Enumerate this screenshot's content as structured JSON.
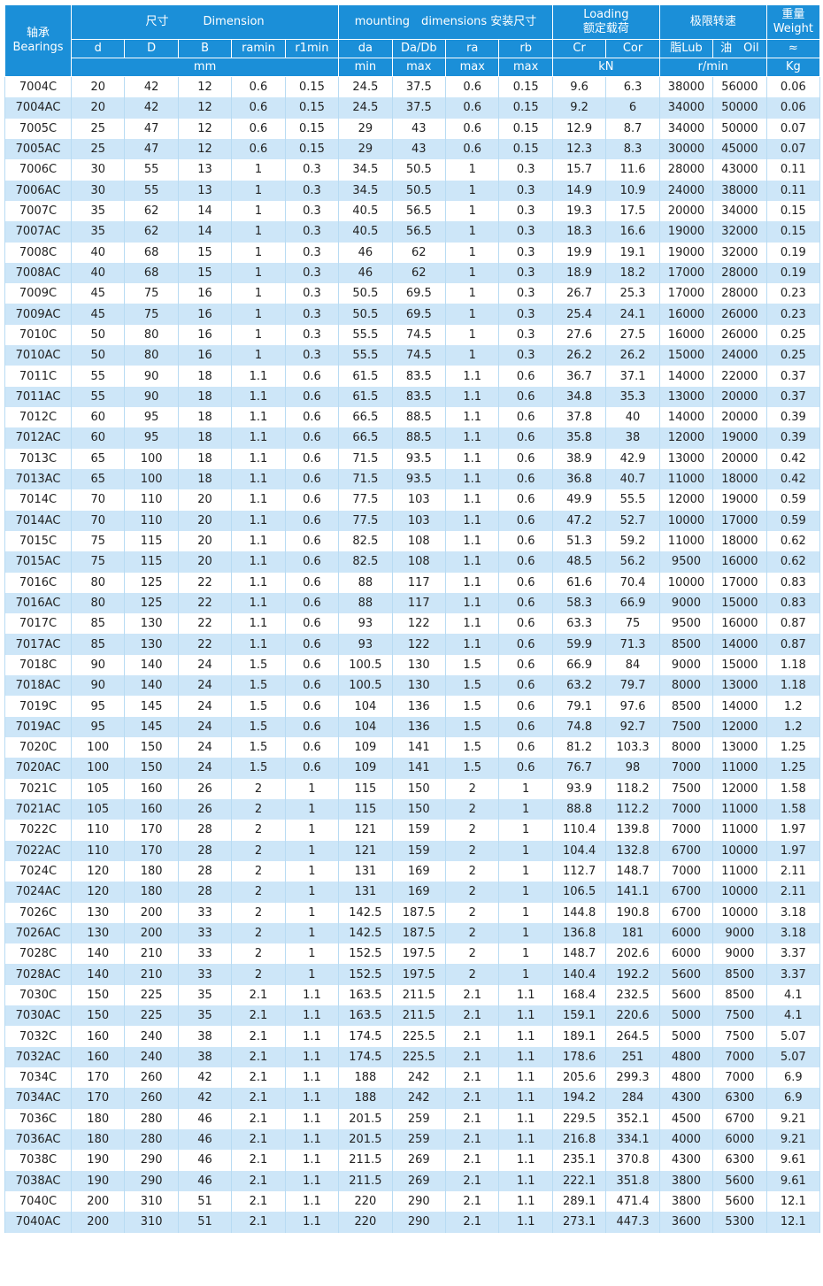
{
  "header": {
    "bearings_cn": "轴承",
    "bearings_en": "Bearings",
    "dimension_cn": "尺寸",
    "dimension_en": "Dimension",
    "mounting": "mounting　dimensions 安装尺寸",
    "loading_en": "Loading",
    "loading_cn": "额定载荷",
    "speed": "极限转速",
    "weight_cn": "重量",
    "weight_en": "Weight",
    "columns": [
      "d",
      "D",
      "B",
      "ramin",
      "r1min",
      "da",
      "Da/Db",
      "ra",
      "rb",
      "Cr",
      "Cor",
      "脂Lub",
      "油　Oil",
      "≈"
    ],
    "units": [
      "mm",
      "min",
      "max",
      "max",
      "max",
      "kN",
      "r/min",
      "Kg"
    ]
  },
  "table": {
    "rows": [
      [
        "7004C",
        20,
        42,
        12,
        0.6,
        0.15,
        24.5,
        37.5,
        0.6,
        0.15,
        9.6,
        6.3,
        38000,
        56000,
        0.06
      ],
      [
        "7004AC",
        20,
        42,
        12,
        0.6,
        0.15,
        24.5,
        37.5,
        0.6,
        0.15,
        9.2,
        6,
        34000,
        50000,
        0.06
      ],
      [
        "7005C",
        25,
        47,
        12,
        0.6,
        0.15,
        29,
        43,
        0.6,
        0.15,
        12.9,
        8.7,
        34000,
        50000,
        0.07
      ],
      [
        "7005AC",
        25,
        47,
        12,
        0.6,
        0.15,
        29,
        43,
        0.6,
        0.15,
        12.3,
        8.3,
        30000,
        45000,
        0.07
      ],
      [
        "7006C",
        30,
        55,
        13,
        1,
        0.3,
        34.5,
        50.5,
        1,
        0.3,
        15.7,
        11.6,
        28000,
        43000,
        0.11
      ],
      [
        "7006AC",
        30,
        55,
        13,
        1,
        0.3,
        34.5,
        50.5,
        1,
        0.3,
        14.9,
        10.9,
        24000,
        38000,
        0.11
      ],
      [
        "7007C",
        35,
        62,
        14,
        1,
        0.3,
        40.5,
        56.5,
        1,
        0.3,
        19.3,
        17.5,
        20000,
        34000,
        0.15
      ],
      [
        "7007AC",
        35,
        62,
        14,
        1,
        0.3,
        40.5,
        56.5,
        1,
        0.3,
        18.3,
        16.6,
        19000,
        32000,
        0.15
      ],
      [
        "7008C",
        40,
        68,
        15,
        1,
        0.3,
        46,
        62,
        1,
        0.3,
        19.9,
        19.1,
        19000,
        32000,
        0.19
      ],
      [
        "7008AC",
        40,
        68,
        15,
        1,
        0.3,
        46,
        62,
        1,
        0.3,
        18.9,
        18.2,
        17000,
        28000,
        0.19
      ],
      [
        "7009C",
        45,
        75,
        16,
        1,
        0.3,
        50.5,
        69.5,
        1,
        0.3,
        26.7,
        25.3,
        17000,
        28000,
        0.23
      ],
      [
        "7009AC",
        45,
        75,
        16,
        1,
        0.3,
        50.5,
        69.5,
        1,
        0.3,
        25.4,
        24.1,
        16000,
        26000,
        0.23
      ],
      [
        "7010C",
        50,
        80,
        16,
        1,
        0.3,
        55.5,
        74.5,
        1,
        0.3,
        27.6,
        27.5,
        16000,
        26000,
        0.25
      ],
      [
        "7010AC",
        50,
        80,
        16,
        1,
        0.3,
        55.5,
        74.5,
        1,
        0.3,
        26.2,
        26.2,
        15000,
        24000,
        0.25
      ],
      [
        "7011C",
        55,
        90,
        18,
        1.1,
        0.6,
        61.5,
        83.5,
        1.1,
        0.6,
        36.7,
        37.1,
        14000,
        22000,
        0.37
      ],
      [
        "7011AC",
        55,
        90,
        18,
        1.1,
        0.6,
        61.5,
        83.5,
        1.1,
        0.6,
        34.8,
        35.3,
        13000,
        20000,
        0.37
      ],
      [
        "7012C",
        60,
        95,
        18,
        1.1,
        0.6,
        66.5,
        88.5,
        1.1,
        0.6,
        37.8,
        40,
        14000,
        20000,
        0.39
      ],
      [
        "7012AC",
        60,
        95,
        18,
        1.1,
        0.6,
        66.5,
        88.5,
        1.1,
        0.6,
        35.8,
        38,
        12000,
        19000,
        0.39
      ],
      [
        "7013C",
        65,
        100,
        18,
        1.1,
        0.6,
        71.5,
        93.5,
        1.1,
        0.6,
        38.9,
        42.9,
        13000,
        20000,
        0.42
      ],
      [
        "7013AC",
        65,
        100,
        18,
        1.1,
        0.6,
        71.5,
        93.5,
        1.1,
        0.6,
        36.8,
        40.7,
        11000,
        18000,
        0.42
      ],
      [
        "7014C",
        70,
        110,
        20,
        1.1,
        0.6,
        77.5,
        103,
        1.1,
        0.6,
        49.9,
        55.5,
        12000,
        19000,
        0.59
      ],
      [
        "7014AC",
        70,
        110,
        20,
        1.1,
        0.6,
        77.5,
        103,
        1.1,
        0.6,
        47.2,
        52.7,
        10000,
        17000,
        0.59
      ],
      [
        "7015C",
        75,
        115,
        20,
        1.1,
        0.6,
        82.5,
        108,
        1.1,
        0.6,
        51.3,
        59.2,
        11000,
        18000,
        0.62
      ],
      [
        "7015AC",
        75,
        115,
        20,
        1.1,
        0.6,
        82.5,
        108,
        1.1,
        0.6,
        48.5,
        56.2,
        9500,
        16000,
        0.62
      ],
      [
        "7016C",
        80,
        125,
        22,
        1.1,
        0.6,
        88,
        117,
        1.1,
        0.6,
        61.6,
        70.4,
        10000,
        17000,
        0.83
      ],
      [
        "7016AC",
        80,
        125,
        22,
        1.1,
        0.6,
        88,
        117,
        1.1,
        0.6,
        58.3,
        66.9,
        9000,
        15000,
        0.83
      ],
      [
        "7017C",
        85,
        130,
        22,
        1.1,
        0.6,
        93,
        122,
        1.1,
        0.6,
        63.3,
        75,
        9500,
        16000,
        0.87
      ],
      [
        "7017AC",
        85,
        130,
        22,
        1.1,
        0.6,
        93,
        122,
        1.1,
        0.6,
        59.9,
        71.3,
        8500,
        14000,
        0.87
      ],
      [
        "7018C",
        90,
        140,
        24,
        1.5,
        0.6,
        100.5,
        130,
        1.5,
        0.6,
        66.9,
        84,
        9000,
        15000,
        1.18
      ],
      [
        "7018AC",
        90,
        140,
        24,
        1.5,
        0.6,
        100.5,
        130,
        1.5,
        0.6,
        63.2,
        79.7,
        8000,
        13000,
        1.18
      ],
      [
        "7019C",
        95,
        145,
        24,
        1.5,
        0.6,
        104,
        136,
        1.5,
        0.6,
        79.1,
        97.6,
        8500,
        14000,
        1.2
      ],
      [
        "7019AC",
        95,
        145,
        24,
        1.5,
        0.6,
        104,
        136,
        1.5,
        0.6,
        74.8,
        92.7,
        7500,
        12000,
        1.2
      ],
      [
        "7020C",
        100,
        150,
        24,
        1.5,
        0.6,
        109,
        141,
        1.5,
        0.6,
        81.2,
        103.3,
        8000,
        13000,
        1.25
      ],
      [
        "7020AC",
        100,
        150,
        24,
        1.5,
        0.6,
        109,
        141,
        1.5,
        0.6,
        76.7,
        98,
        7000,
        11000,
        1.25
      ],
      [
        "7021C",
        105,
        160,
        26,
        2,
        1,
        115,
        150,
        2,
        1,
        93.9,
        118.2,
        7500,
        12000,
        1.58
      ],
      [
        "7021AC",
        105,
        160,
        26,
        2,
        1,
        115,
        150,
        2,
        1,
        88.8,
        112.2,
        7000,
        11000,
        1.58
      ],
      [
        "7022C",
        110,
        170,
        28,
        2,
        1,
        121,
        159,
        2,
        1,
        110.4,
        139.8,
        7000,
        11000,
        1.97
      ],
      [
        "7022AC",
        110,
        170,
        28,
        2,
        1,
        121,
        159,
        2,
        1,
        104.4,
        132.8,
        6700,
        10000,
        1.97
      ],
      [
        "7024C",
        120,
        180,
        28,
        2,
        1,
        131,
        169,
        2,
        1,
        112.7,
        148.7,
        7000,
        11000,
        2.11
      ],
      [
        "7024AC",
        120,
        180,
        28,
        2,
        1,
        131,
        169,
        2,
        1,
        106.5,
        141.1,
        6700,
        10000,
        2.11
      ],
      [
        "7026C",
        130,
        200,
        33,
        2,
        1,
        142.5,
        187.5,
        2,
        1,
        144.8,
        190.8,
        6700,
        10000,
        3.18
      ],
      [
        "7026AC",
        130,
        200,
        33,
        2,
        1,
        142.5,
        187.5,
        2,
        1,
        136.8,
        181,
        6000,
        9000,
        3.18
      ],
      [
        "7028C",
        140,
        210,
        33,
        2,
        1,
        152.5,
        197.5,
        2,
        1,
        148.7,
        202.6,
        6000,
        9000,
        3.37
      ],
      [
        "7028AC",
        140,
        210,
        33,
        2,
        1,
        152.5,
        197.5,
        2,
        1,
        140.4,
        192.2,
        5600,
        8500,
        3.37
      ],
      [
        "7030C",
        150,
        225,
        35,
        2.1,
        1.1,
        163.5,
        211.5,
        2.1,
        1.1,
        168.4,
        232.5,
        5600,
        8500,
        4.1
      ],
      [
        "7030AC",
        150,
        225,
        35,
        2.1,
        1.1,
        163.5,
        211.5,
        2.1,
        1.1,
        159.1,
        220.6,
        5000,
        7500,
        4.1
      ],
      [
        "7032C",
        160,
        240,
        38,
        2.1,
        1.1,
        174.5,
        225.5,
        2.1,
        1.1,
        189.1,
        264.5,
        5000,
        7500,
        5.07
      ],
      [
        "7032AC",
        160,
        240,
        38,
        2.1,
        1.1,
        174.5,
        225.5,
        2.1,
        1.1,
        178.6,
        251,
        4800,
        7000,
        5.07
      ],
      [
        "7034C",
        170,
        260,
        42,
        2.1,
        1.1,
        188,
        242,
        2.1,
        1.1,
        205.6,
        299.3,
        4800,
        7000,
        6.9
      ],
      [
        "7034AC",
        170,
        260,
        42,
        2.1,
        1.1,
        188,
        242,
        2.1,
        1.1,
        194.2,
        284,
        4300,
        6300,
        6.9
      ],
      [
        "7036C",
        180,
        280,
        46,
        2.1,
        1.1,
        201.5,
        259,
        2.1,
        1.1,
        229.5,
        352.1,
        4500,
        6700,
        9.21
      ],
      [
        "7036AC",
        180,
        280,
        46,
        2.1,
        1.1,
        201.5,
        259,
        2.1,
        1.1,
        216.8,
        334.1,
        4000,
        6000,
        9.21
      ],
      [
        "7038C",
        190,
        290,
        46,
        2.1,
        1.1,
        211.5,
        269,
        2.1,
        1.1,
        235.1,
        370.8,
        4300,
        6300,
        9.61
      ],
      [
        "7038AC",
        190,
        290,
        46,
        2.1,
        1.1,
        211.5,
        269,
        2.1,
        1.1,
        222.1,
        351.8,
        3800,
        5600,
        9.61
      ],
      [
        "7040C",
        200,
        310,
        51,
        2.1,
        1.1,
        220,
        290,
        2.1,
        1.1,
        289.1,
        471.4,
        3800,
        5600,
        12.1
      ],
      [
        "7040AC",
        200,
        310,
        51,
        2.1,
        1.1,
        220,
        290,
        2.1,
        1.1,
        273.1,
        447.3,
        3600,
        5300,
        12.1
      ]
    ]
  }
}
